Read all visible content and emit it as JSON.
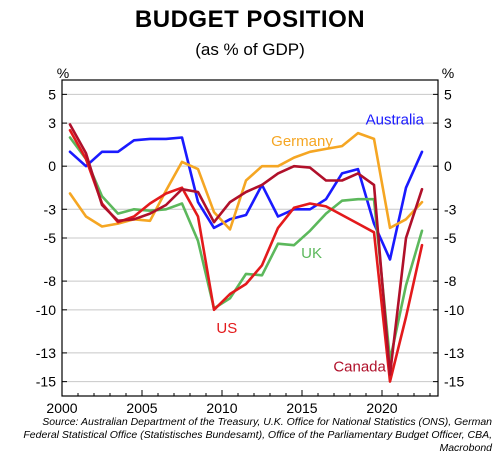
{
  "chart_data": {
    "type": "line",
    "title": "BUDGET POSITION",
    "subtitle": "(as % of GDP)",
    "ylabel_left": "%",
    "ylabel_right": "%",
    "xlim": [
      2000,
      2023.5
    ],
    "ylim": [
      -16,
      6
    ],
    "y_ticks": [
      5,
      3,
      0,
      -3,
      -5,
      -8,
      -10,
      -13,
      -15
    ],
    "x_ticks": [
      2000,
      2005,
      2010,
      2015,
      2020
    ],
    "grid": true,
    "series": [
      {
        "name": "Australia",
        "color": "#1a1aff",
        "x": [
          2000.5,
          2001.5,
          2002.5,
          2003.5,
          2004.5,
          2005.5,
          2006.5,
          2007.5,
          2008.5,
          2009.5,
          2010.5,
          2011.5,
          2012.5,
          2013.5,
          2014.5,
          2015.5,
          2016.5,
          2017.5,
          2018.5,
          2019.5,
          2020.5,
          2021.5,
          2022.5
        ],
        "values": [
          1.0,
          0.0,
          1.0,
          1.0,
          1.8,
          1.9,
          1.9,
          2.0,
          -2.5,
          -4.3,
          -3.7,
          -3.4,
          -1.3,
          -3.5,
          -3.0,
          -3.0,
          -2.3,
          -0.5,
          -0.2,
          -4.0,
          -6.5,
          -1.5,
          1.0
        ]
      },
      {
        "name": "Germany",
        "color": "#f5a623",
        "x": [
          2000.5,
          2001.5,
          2002.5,
          2003.5,
          2004.5,
          2005.5,
          2006.5,
          2007.5,
          2008.5,
          2009.5,
          2010.5,
          2011.5,
          2012.5,
          2013.5,
          2014.5,
          2015.5,
          2016.5,
          2017.5,
          2018.5,
          2019.5,
          2020.5,
          2021.5,
          2022.5
        ],
        "values": [
          -1.9,
          -3.5,
          -4.2,
          -4.0,
          -3.7,
          -3.8,
          -1.7,
          0.3,
          -0.2,
          -3.2,
          -4.4,
          -1.0,
          0.0,
          0.0,
          0.6,
          1.0,
          1.2,
          1.4,
          2.3,
          1.9,
          -4.3,
          -3.7,
          -2.5
        ]
      },
      {
        "name": "UK",
        "color": "#5cb85c",
        "x": [
          2000.5,
          2001.5,
          2002.5,
          2003.5,
          2004.5,
          2005.5,
          2006.5,
          2007.5,
          2008.5,
          2009.5,
          2010.5,
          2011.5,
          2012.5,
          2013.5,
          2014.5,
          2015.5,
          2016.5,
          2017.5,
          2018.5,
          2019.5,
          2020.5,
          2021.5,
          2022.5
        ],
        "values": [
          2.0,
          0.5,
          -2.1,
          -3.3,
          -3.0,
          -3.1,
          -3.0,
          -2.6,
          -5.2,
          -9.9,
          -9.2,
          -7.5,
          -7.6,
          -5.4,
          -5.5,
          -4.5,
          -3.3,
          -2.4,
          -2.3,
          -2.3,
          -13.5,
          -8.3,
          -4.5
        ]
      },
      {
        "name": "US",
        "color": "#e31a1c",
        "x": [
          2000.5,
          2001.5,
          2002.5,
          2003.5,
          2004.5,
          2005.5,
          2006.5,
          2007.5,
          2008.5,
          2009.5,
          2010.5,
          2011.5,
          2012.5,
          2013.5,
          2014.5,
          2015.5,
          2016.5,
          2017.5,
          2018.5,
          2019.5,
          2020.5,
          2021.5,
          2022.5
        ],
        "values": [
          2.5,
          0.5,
          -2.6,
          -3.9,
          -3.5,
          -2.6,
          -1.9,
          -1.5,
          -3.5,
          -10.0,
          -8.9,
          -8.2,
          -6.9,
          -4.3,
          -2.9,
          -2.6,
          -2.8,
          -3.4,
          -4.0,
          -4.6,
          -15.0,
          -10.5,
          -5.5
        ]
      },
      {
        "name": "Canada",
        "color": "#b0102a",
        "x": [
          2000.5,
          2001.5,
          2002.5,
          2003.5,
          2004.5,
          2005.5,
          2006.5,
          2007.5,
          2008.5,
          2009.5,
          2010.5,
          2011.5,
          2012.5,
          2013.5,
          2014.5,
          2015.5,
          2016.5,
          2017.5,
          2018.5,
          2019.5,
          2020.5,
          2021.5,
          2022.5
        ],
        "values": [
          2.9,
          0.9,
          -2.7,
          -3.8,
          -3.7,
          -3.3,
          -2.7,
          -1.6,
          -1.8,
          -3.9,
          -2.5,
          -1.8,
          -1.3,
          -0.5,
          0.0,
          -0.1,
          -1.0,
          -1.0,
          -0.5,
          -1.3,
          -14.5,
          -5.0,
          -1.6
        ]
      }
    ],
    "labels": [
      {
        "text": "Australia",
        "series": "Australia",
        "x": 2020.8,
        "y": 2.9
      },
      {
        "text": "Germany",
        "series": "Germany",
        "x": 2015.0,
        "y": 1.4
      },
      {
        "text": "UK",
        "series": "UK",
        "x": 2015.6,
        "y": -6.4
      },
      {
        "text": "US",
        "series": "US",
        "x": 2010.3,
        "y": -11.6
      },
      {
        "text": "Canada",
        "series": "Canada",
        "x": 2018.6,
        "y": -14.3
      }
    ],
    "source": "Source: Australian Department of the Treasury, U.K. Office for National Statistics (ONS), German Federal Statistical Office (Statistisches Bundesamt), Office of the Parliamentary Budget Officer, CBA, Macrobond"
  }
}
